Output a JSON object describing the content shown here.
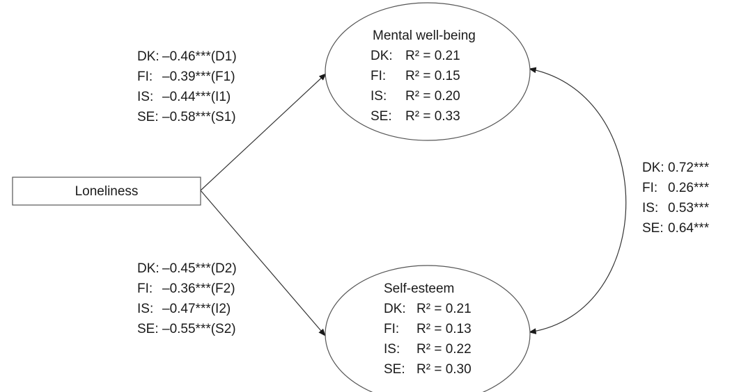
{
  "predictor": {
    "label": "Loneliness"
  },
  "outcome_top": {
    "title": "Mental well-being",
    "rows": [
      {
        "code": "DK:",
        "value": "R² = 0.21"
      },
      {
        "code": "FI:",
        "value": "R² = 0.15"
      },
      {
        "code": "IS:",
        "value": "R² = 0.20"
      },
      {
        "code": "SE:",
        "value": "R² = 0.33"
      }
    ]
  },
  "outcome_bottom": {
    "title": "Self-esteem",
    "rows": [
      {
        "code": "DK:",
        "value": "R² = 0.21"
      },
      {
        "code": "FI:",
        "value": "R² = 0.13"
      },
      {
        "code": "IS:",
        "value": "R² = 0.22"
      },
      {
        "code": "SE:",
        "value": "R² = 0.30"
      }
    ]
  },
  "path_top": [
    {
      "code": "DK:",
      "value": "–0.46***(D1)"
    },
    {
      "code": "FI:",
      "value": "–0.39***(F1)"
    },
    {
      "code": "IS:",
      "value": "–0.44***(I1)"
    },
    {
      "code": "SE:",
      "value": "–0.58***(S1)"
    }
  ],
  "path_bottom": [
    {
      "code": "DK:",
      "value": "–0.45***(D2)"
    },
    {
      "code": "FI:",
      "value": "–0.36***(F2)"
    },
    {
      "code": "IS:",
      "value": "–0.47***(I2)"
    },
    {
      "code": "SE:",
      "value": "–0.55***(S2)"
    }
  ],
  "correlation": [
    {
      "code": "DK:",
      "value": "0.72***"
    },
    {
      "code": "FI:",
      "value": "0.26***"
    },
    {
      "code": "IS:",
      "value": "0.53***"
    },
    {
      "code": "SE:",
      "value": "0.64***"
    }
  ]
}
